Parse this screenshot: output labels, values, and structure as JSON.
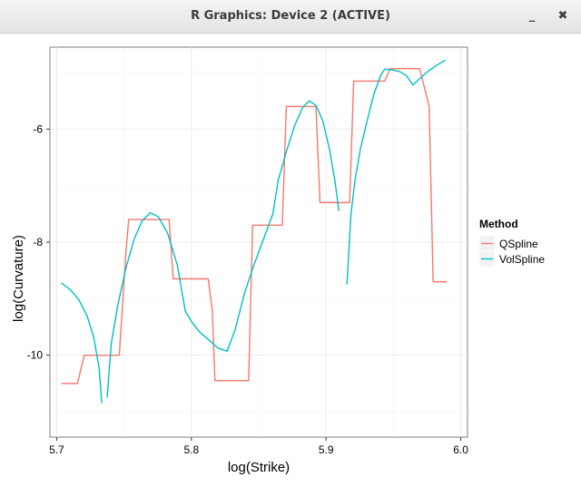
{
  "window": {
    "title": "R Graphics: Device 2 (ACTIVE)",
    "minimize_glyph": "_",
    "close_glyph": "✖"
  },
  "chart_data": {
    "type": "line",
    "xlabel": "log(Strike)",
    "ylabel": "log(Curvature)",
    "xlim": [
      5.695,
      6.005
    ],
    "ylim": [
      -11.45,
      -4.55
    ],
    "xticks": [
      5.7,
      5.8,
      5.9,
      6.0
    ],
    "xtick_labels": [
      "5.7",
      "5.8",
      "5.9",
      "6.0"
    ],
    "yticks": [
      -10,
      -8,
      -6
    ],
    "ytick_labels": [
      "-10",
      "-8",
      "-6"
    ],
    "grid": true,
    "legend": {
      "title": "Method",
      "placement": "right"
    },
    "series": [
      {
        "name": "QSpline",
        "color": "#f8766d",
        "segments": [
          [
            [
              5.7035,
              -10.5
            ],
            [
              5.7155,
              -10.5
            ],
            [
              5.7205,
              -10.0
            ],
            [
              5.7465,
              -10.0
            ],
            [
              5.7515,
              -8.15
            ],
            [
              5.7535,
              -7.6
            ],
            [
              5.7835,
              -7.6
            ],
            [
              5.7865,
              -8.65
            ],
            [
              5.8125,
              -8.65
            ],
            [
              5.8155,
              -9.2
            ],
            [
              5.8175,
              -10.45
            ],
            [
              5.8425,
              -10.45
            ],
            [
              5.8455,
              -7.7
            ],
            [
              5.8675,
              -7.7
            ],
            [
              5.8705,
              -5.6
            ],
            [
              5.8925,
              -5.6
            ],
            [
              5.8955,
              -7.3
            ],
            [
              5.9175,
              -7.3
            ],
            [
              5.9205,
              -5.15
            ],
            [
              5.9435,
              -5.15
            ],
            [
              5.9475,
              -4.93
            ],
            [
              5.9695,
              -4.93
            ],
            [
              5.9765,
              -5.6
            ],
            [
              5.9795,
              -8.7
            ],
            [
              5.9895,
              -8.7
            ]
          ]
        ]
      },
      {
        "name": "VolSpline",
        "color": "#00bfc4",
        "segments": [
          [
            [
              5.7035,
              -8.72
            ],
            [
              5.7105,
              -8.85
            ],
            [
              5.7165,
              -9.02
            ],
            [
              5.7225,
              -9.3
            ],
            [
              5.7275,
              -9.68
            ],
            [
              5.7315,
              -10.22
            ],
            [
              5.7335,
              -10.85
            ]
          ],
          [
            [
              5.7375,
              -10.75
            ],
            [
              5.7405,
              -9.8
            ],
            [
              5.7455,
              -9.1
            ],
            [
              5.7515,
              -8.45
            ],
            [
              5.7575,
              -7.95
            ],
            [
              5.7635,
              -7.62
            ],
            [
              5.7695,
              -7.48
            ],
            [
              5.7755,
              -7.55
            ],
            [
              5.7825,
              -7.85
            ],
            [
              5.7895,
              -8.4
            ],
            [
              5.7955,
              -9.22
            ],
            [
              5.8005,
              -9.42
            ],
            [
              5.8065,
              -9.6
            ],
            [
              5.8125,
              -9.72
            ],
            [
              5.8195,
              -9.87
            ],
            [
              5.8265,
              -9.93
            ],
            [
              5.8325,
              -9.55
            ],
            [
              5.8395,
              -8.9
            ],
            [
              5.8465,
              -8.4
            ],
            [
              5.8535,
              -7.95
            ],
            [
              5.8605,
              -7.5
            ],
            [
              5.8645,
              -6.9
            ],
            [
              5.8705,
              -6.4
            ],
            [
              5.8765,
              -5.95
            ],
            [
              5.8825,
              -5.62
            ],
            [
              5.8875,
              -5.5
            ],
            [
              5.8925,
              -5.58
            ],
            [
              5.8975,
              -5.85
            ],
            [
              5.9025,
              -6.35
            ],
            [
              5.9065,
              -6.9
            ],
            [
              5.9095,
              -7.45
            ]
          ],
          [
            [
              5.9155,
              -8.75
            ],
            [
              5.9185,
              -7.5
            ],
            [
              5.9215,
              -6.9
            ],
            [
              5.9255,
              -6.35
            ],
            [
              5.9305,
              -5.85
            ],
            [
              5.9355,
              -5.38
            ],
            [
              5.9405,
              -5.05
            ],
            [
              5.9435,
              -4.94
            ],
            [
              5.9485,
              -4.95
            ],
            [
              5.9545,
              -4.98
            ],
            [
              5.9595,
              -5.05
            ],
            [
              5.9645,
              -5.22
            ],
            [
              5.9685,
              -5.13
            ],
            [
              5.9745,
              -5.0
            ],
            [
              5.9815,
              -4.88
            ],
            [
              5.9885,
              -4.78
            ]
          ]
        ]
      }
    ]
  }
}
